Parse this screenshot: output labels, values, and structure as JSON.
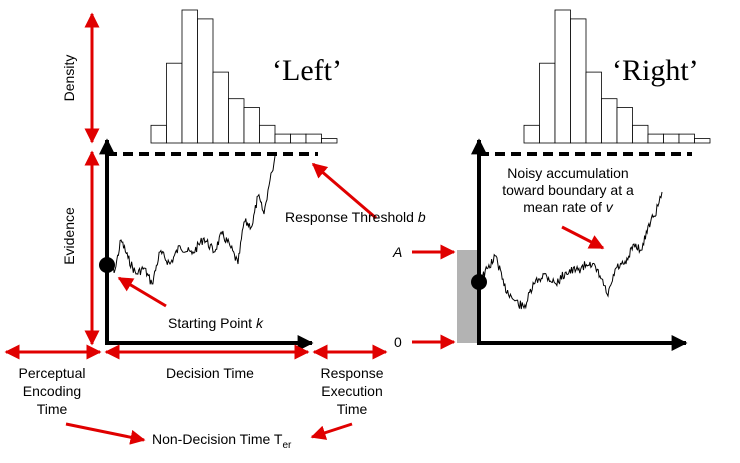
{
  "panels": {
    "left": {
      "title": "‘Left’",
      "histogram_heights": [
        2,
        9,
        15,
        14,
        8,
        5,
        4,
        2,
        1,
        1,
        1,
        0.5
      ]
    },
    "right": {
      "title": "‘Right’",
      "histogram_heights": [
        2,
        9,
        15,
        14,
        8,
        5,
        4,
        2,
        1,
        1,
        1,
        0.5
      ]
    }
  },
  "axis_labels": {
    "density": "Density",
    "evidence": "Evidence",
    "decision_time": "Decision Time"
  },
  "annotations": {
    "response_threshold": "Response Threshold",
    "response_threshold_var": "b",
    "starting_point": "Starting Point",
    "starting_point_var": "k",
    "noisy_line1": "Noisy accumulation",
    "noisy_line2": "toward boundary at a",
    "noisy_line3": "mean rate of",
    "noisy_var": "v",
    "marker_a": "A",
    "marker_zero": "0"
  },
  "phases": {
    "perceptual_line1": "Perceptual",
    "perceptual_line2": "Encoding",
    "perceptual_line3": "Time",
    "response_line1": "Response",
    "response_line2": "Execution",
    "response_line3": "Time",
    "non_decision": "Non-Decision Time T",
    "non_decision_sub": "er"
  },
  "colors": {
    "arrow_red": "#e00000",
    "axis": "#000000",
    "bar_fill": "#ffffff",
    "start_band": "#b3b3b3"
  }
}
